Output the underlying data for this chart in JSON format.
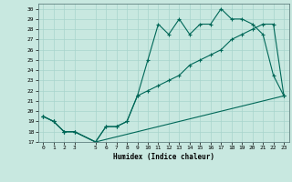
{
  "title": "",
  "xlabel": "Humidex (Indice chaleur)",
  "background_color": "#c8e8e0",
  "grid_color": "#a8d4cc",
  "line_color": "#006858",
  "xlim": [
    -0.5,
    23.5
  ],
  "ylim": [
    17,
    30.5
  ],
  "xticks": [
    0,
    1,
    2,
    3,
    5,
    6,
    7,
    8,
    9,
    10,
    11,
    12,
    13,
    14,
    15,
    16,
    17,
    18,
    19,
    20,
    21,
    22,
    23
  ],
  "yticks": [
    17,
    18,
    19,
    20,
    21,
    22,
    23,
    24,
    25,
    26,
    27,
    28,
    29,
    30
  ],
  "line1_x": [
    0,
    1,
    2,
    3,
    5,
    6,
    7,
    8,
    9,
    10,
    11,
    12,
    13,
    14,
    15,
    16,
    17,
    18,
    19,
    20,
    21,
    22,
    23
  ],
  "line1_y": [
    19.5,
    19.0,
    18.0,
    18.0,
    17.0,
    18.5,
    18.5,
    19.0,
    21.5,
    25.0,
    28.5,
    27.5,
    29.0,
    27.5,
    28.5,
    28.5,
    30.0,
    29.0,
    29.0,
    28.5,
    27.5,
    23.5,
    21.5
  ],
  "line2_x": [
    0,
    1,
    2,
    3,
    5,
    6,
    7,
    8,
    9,
    10,
    11,
    12,
    13,
    14,
    15,
    16,
    17,
    18,
    19,
    20,
    21,
    22,
    23
  ],
  "line2_y": [
    19.5,
    19.0,
    18.0,
    18.0,
    17.0,
    18.5,
    18.5,
    19.0,
    21.5,
    22.0,
    22.5,
    23.0,
    23.5,
    24.5,
    25.0,
    25.5,
    26.0,
    27.0,
    27.5,
    28.0,
    28.5,
    28.5,
    21.5
  ],
  "line3_x": [
    0,
    1,
    2,
    3,
    5,
    23
  ],
  "line3_y": [
    19.5,
    19.0,
    18.0,
    18.0,
    17.0,
    21.5
  ]
}
